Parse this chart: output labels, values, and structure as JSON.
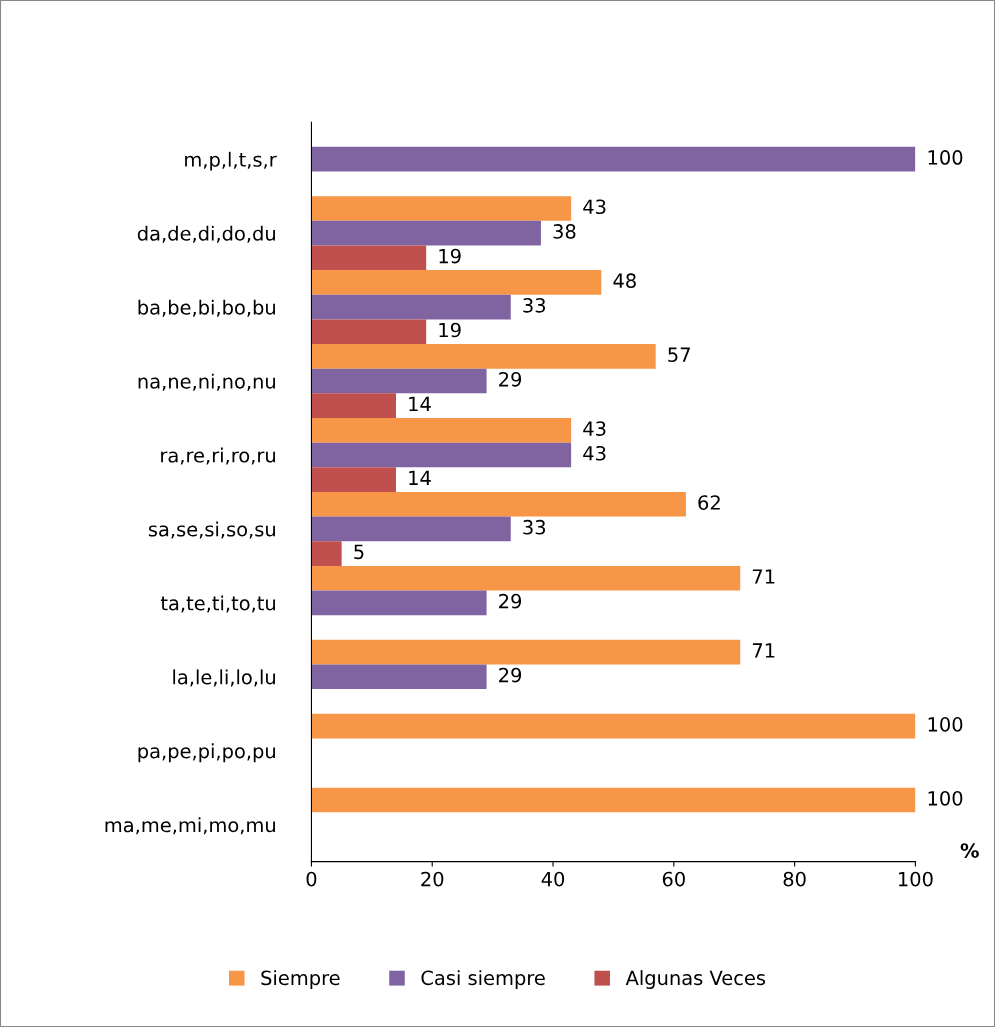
{
  "chart_data": {
    "type": "bar",
    "orientation": "horizontal",
    "xlabel": "%",
    "categories": [
      "m,p,l,t,s,r",
      "da,de,di,do,du",
      "ba,be,bi,bo,bu",
      "na,ne,ni,no,nu",
      "ra,re,ri,ro,ru",
      "sa,se,si,so,su",
      "ta,te,ti,to,tu",
      "la,le,li,lo,lu",
      "pa,pe,pi,po,pu",
      "ma,me,mi,mo,mu"
    ],
    "series": [
      {
        "name": "Siempre",
        "color": "#f79646",
        "values": [
          null,
          43,
          48,
          57,
          43,
          62,
          71,
          71,
          100,
          100
        ]
      },
      {
        "name": "Casi siempre",
        "color": "#8064a2",
        "values": [
          100,
          38,
          33,
          29,
          43,
          33,
          29,
          29,
          null,
          null
        ]
      },
      {
        "name": "Algunas Veces",
        "color": "#c0504d",
        "values": [
          null,
          19,
          19,
          14,
          14,
          5,
          null,
          null,
          null,
          null
        ]
      }
    ],
    "xlim": [
      0,
      100
    ],
    "xticks": [
      0,
      20,
      40,
      60,
      80,
      100
    ],
    "data_labels": true,
    "grid": false,
    "legend": "bottom"
  }
}
